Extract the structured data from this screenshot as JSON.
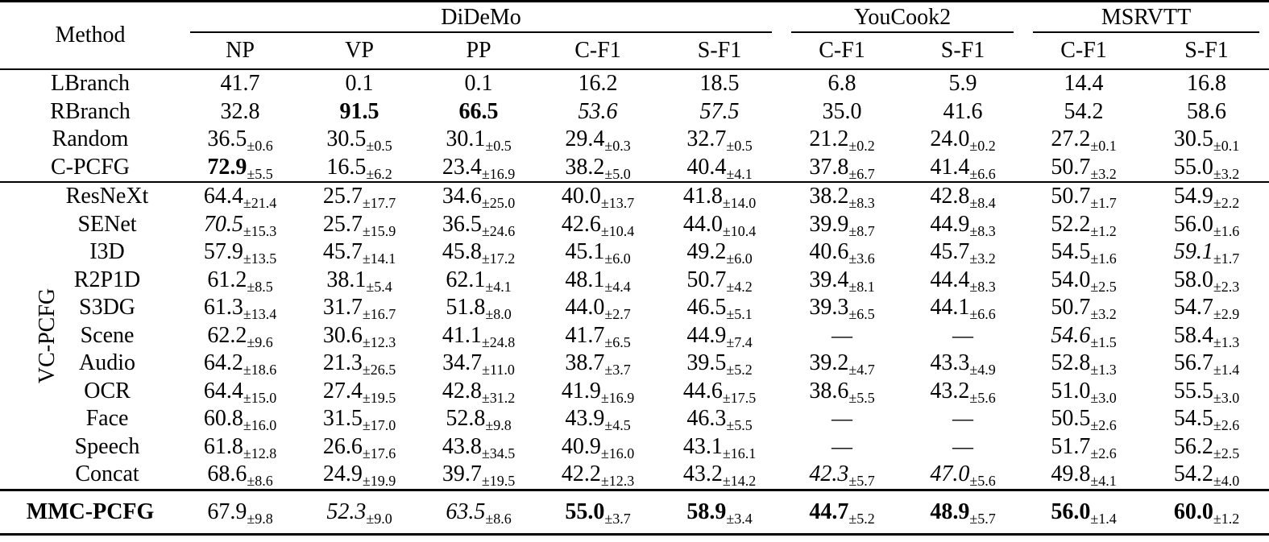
{
  "header": {
    "method_label": "Method",
    "groups": [
      "DiDeMo",
      "YouCook2",
      "MSRVTT"
    ],
    "columns": [
      "NP",
      "VP",
      "PP",
      "C-F1",
      "S-F1",
      "C-F1",
      "S-F1",
      "C-F1",
      "S-F1"
    ]
  },
  "vc_group_label": "VC-PCFG",
  "rows": [
    {
      "name": "LBranch",
      "cells": [
        {
          "v": "41.7"
        },
        {
          "v": "0.1"
        },
        {
          "v": "0.1"
        },
        {
          "v": "16.2"
        },
        {
          "v": "18.5"
        },
        {
          "v": "6.8"
        },
        {
          "v": "5.9"
        },
        {
          "v": "14.4"
        },
        {
          "v": "16.8"
        }
      ]
    },
    {
      "name": "RBranch",
      "cells": [
        {
          "v": "32.8"
        },
        {
          "v": "91.5",
          "b": true
        },
        {
          "v": "66.5",
          "b": true
        },
        {
          "v": "53.6",
          "i": true
        },
        {
          "v": "57.5",
          "i": true
        },
        {
          "v": "35.0"
        },
        {
          "v": "41.6"
        },
        {
          "v": "54.2"
        },
        {
          "v": "58.6"
        }
      ]
    },
    {
      "name": "Random",
      "cells": [
        {
          "v": "36.5",
          "s": "±0.6"
        },
        {
          "v": "30.5",
          "s": "±0.5"
        },
        {
          "v": "30.1",
          "s": "±0.5"
        },
        {
          "v": "29.4",
          "s": "±0.3"
        },
        {
          "v": "32.7",
          "s": "±0.5"
        },
        {
          "v": "21.2",
          "s": "±0.2"
        },
        {
          "v": "24.0",
          "s": "±0.2"
        },
        {
          "v": "27.2",
          "s": "±0.1"
        },
        {
          "v": "30.5",
          "s": "±0.1"
        }
      ]
    },
    {
      "name": "C-PCFG",
      "cells": [
        {
          "v": "72.9",
          "s": "±5.5",
          "b": true
        },
        {
          "v": "16.5",
          "s": "±6.2"
        },
        {
          "v": "23.4",
          "s": "±16.9"
        },
        {
          "v": "38.2",
          "s": "±5.0"
        },
        {
          "v": "40.4",
          "s": "±4.1"
        },
        {
          "v": "37.8",
          "s": "±6.7"
        },
        {
          "v": "41.4",
          "s": "±6.6"
        },
        {
          "v": "50.7",
          "s": "±3.2"
        },
        {
          "v": "55.0",
          "s": "±3.2"
        }
      ]
    },
    {
      "name": "ResNeXt",
      "cells": [
        {
          "v": "64.4",
          "s": "±21.4"
        },
        {
          "v": "25.7",
          "s": "±17.7"
        },
        {
          "v": "34.6",
          "s": "±25.0"
        },
        {
          "v": "40.0",
          "s": "±13.7"
        },
        {
          "v": "41.8",
          "s": "±14.0"
        },
        {
          "v": "38.2",
          "s": "±8.3"
        },
        {
          "v": "42.8",
          "s": "±8.4"
        },
        {
          "v": "50.7",
          "s": "±1.7"
        },
        {
          "v": "54.9",
          "s": "±2.2"
        }
      ]
    },
    {
      "name": "SENet",
      "cells": [
        {
          "v": "70.5",
          "s": "±15.3",
          "i": true
        },
        {
          "v": "25.7",
          "s": "±15.9"
        },
        {
          "v": "36.5",
          "s": "±24.6"
        },
        {
          "v": "42.6",
          "s": "±10.4"
        },
        {
          "v": "44.0",
          "s": "±10.4"
        },
        {
          "v": "39.9",
          "s": "±8.7"
        },
        {
          "v": "44.9",
          "s": "±8.3"
        },
        {
          "v": "52.2",
          "s": "±1.2"
        },
        {
          "v": "56.0",
          "s": "±1.6"
        }
      ]
    },
    {
      "name": "I3D",
      "cells": [
        {
          "v": "57.9",
          "s": "±13.5"
        },
        {
          "v": "45.7",
          "s": "±14.1"
        },
        {
          "v": "45.8",
          "s": "±17.2"
        },
        {
          "v": "45.1",
          "s": "±6.0"
        },
        {
          "v": "49.2",
          "s": "±6.0"
        },
        {
          "v": "40.6",
          "s": "±3.6"
        },
        {
          "v": "45.7",
          "s": "±3.2"
        },
        {
          "v": "54.5",
          "s": "±1.6"
        },
        {
          "v": "59.1",
          "s": "±1.7",
          "i": true
        }
      ]
    },
    {
      "name": "R2P1D",
      "cells": [
        {
          "v": "61.2",
          "s": "±8.5"
        },
        {
          "v": "38.1",
          "s": "±5.4"
        },
        {
          "v": "62.1",
          "s": "±4.1"
        },
        {
          "v": "48.1",
          "s": "±4.4"
        },
        {
          "v": "50.7",
          "s": "±4.2"
        },
        {
          "v": "39.4",
          "s": "±8.1"
        },
        {
          "v": "44.4",
          "s": "±8.3"
        },
        {
          "v": "54.0",
          "s": "±2.5"
        },
        {
          "v": "58.0",
          "s": "±2.3"
        }
      ]
    },
    {
      "name": "S3DG",
      "cells": [
        {
          "v": "61.3",
          "s": "±13.4"
        },
        {
          "v": "31.7",
          "s": "±16.7"
        },
        {
          "v": "51.8",
          "s": "±8.0"
        },
        {
          "v": "44.0",
          "s": "±2.7"
        },
        {
          "v": "46.5",
          "s": "±5.1"
        },
        {
          "v": "39.3",
          "s": "±6.5"
        },
        {
          "v": "44.1",
          "s": "±6.6"
        },
        {
          "v": "50.7",
          "s": "±3.2"
        },
        {
          "v": "54.7",
          "s": "±2.9"
        }
      ]
    },
    {
      "name": "Scene",
      "cells": [
        {
          "v": "62.2",
          "s": "±9.6"
        },
        {
          "v": "30.6",
          "s": "±12.3"
        },
        {
          "v": "41.1",
          "s": "±24.8"
        },
        {
          "v": "41.7",
          "s": "±6.5"
        },
        {
          "v": "44.9",
          "s": "±7.4"
        },
        {
          "v": "—"
        },
        {
          "v": "—"
        },
        {
          "v": "54.6",
          "s": "±1.5",
          "i": true
        },
        {
          "v": "58.4",
          "s": "±1.3"
        }
      ]
    },
    {
      "name": "Audio",
      "cells": [
        {
          "v": "64.2",
          "s": "±18.6"
        },
        {
          "v": "21.3",
          "s": "±26.5"
        },
        {
          "v": "34.7",
          "s": "±11.0"
        },
        {
          "v": "38.7",
          "s": "±3.7"
        },
        {
          "v": "39.5",
          "s": "±5.2"
        },
        {
          "v": "39.2",
          "s": "±4.7"
        },
        {
          "v": "43.3",
          "s": "±4.9"
        },
        {
          "v": "52.8",
          "s": "±1.3"
        },
        {
          "v": "56.7",
          "s": "±1.4"
        }
      ]
    },
    {
      "name": "OCR",
      "cells": [
        {
          "v": "64.4",
          "s": "±15.0"
        },
        {
          "v": "27.4",
          "s": "±19.5"
        },
        {
          "v": "42.8",
          "s": "±31.2"
        },
        {
          "v": "41.9",
          "s": "±16.9"
        },
        {
          "v": "44.6",
          "s": "±17.5"
        },
        {
          "v": "38.6",
          "s": "±5.5"
        },
        {
          "v": "43.2",
          "s": "±5.6"
        },
        {
          "v": "51.0",
          "s": "±3.0"
        },
        {
          "v": "55.5",
          "s": "±3.0"
        }
      ]
    },
    {
      "name": "Face",
      "cells": [
        {
          "v": "60.8",
          "s": "±16.0"
        },
        {
          "v": "31.5",
          "s": "±17.0"
        },
        {
          "v": "52.8",
          "s": "±9.8"
        },
        {
          "v": "43.9",
          "s": "±4.5"
        },
        {
          "v": "46.3",
          "s": "±5.5"
        },
        {
          "v": "—"
        },
        {
          "v": "—"
        },
        {
          "v": "50.5",
          "s": "±2.6"
        },
        {
          "v": "54.5",
          "s": "±2.6"
        }
      ]
    },
    {
      "name": "Speech",
      "cells": [
        {
          "v": "61.8",
          "s": "±12.8"
        },
        {
          "v": "26.6",
          "s": "±17.6"
        },
        {
          "v": "43.8",
          "s": "±34.5"
        },
        {
          "v": "40.9",
          "s": "±16.0"
        },
        {
          "v": "43.1",
          "s": "±16.1"
        },
        {
          "v": "—"
        },
        {
          "v": "—"
        },
        {
          "v": "51.7",
          "s": "±2.6"
        },
        {
          "v": "56.2",
          "s": "±2.5"
        }
      ]
    },
    {
      "name": "Concat",
      "cells": [
        {
          "v": "68.6",
          "s": "±8.6"
        },
        {
          "v": "24.9",
          "s": "±19.9"
        },
        {
          "v": "39.7",
          "s": "±19.5"
        },
        {
          "v": "42.2",
          "s": "±12.3"
        },
        {
          "v": "43.2",
          "s": "±14.2"
        },
        {
          "v": "42.3",
          "s": "±5.7",
          "i": true
        },
        {
          "v": "47.0",
          "s": "±5.6",
          "i": true
        },
        {
          "v": "49.8",
          "s": "±4.1"
        },
        {
          "v": "54.2",
          "s": "±4.0"
        }
      ]
    },
    {
      "name": "MMC-PCFG",
      "name_bold": true,
      "cells": [
        {
          "v": "67.9",
          "s": "±9.8"
        },
        {
          "v": "52.3",
          "s": "±9.0",
          "i": true
        },
        {
          "v": "63.5",
          "s": "±8.6",
          "i": true
        },
        {
          "v": "55.0",
          "s": "±3.7",
          "b": true
        },
        {
          "v": "58.9",
          "s": "±3.4",
          "b": true
        },
        {
          "v": "44.7",
          "s": "±5.2",
          "b": true
        },
        {
          "v": "48.9",
          "s": "±5.7",
          "b": true
        },
        {
          "v": "56.0",
          "s": "±1.4",
          "b": true
        },
        {
          "v": "60.0",
          "s": "±1.2",
          "b": true
        }
      ]
    }
  ]
}
